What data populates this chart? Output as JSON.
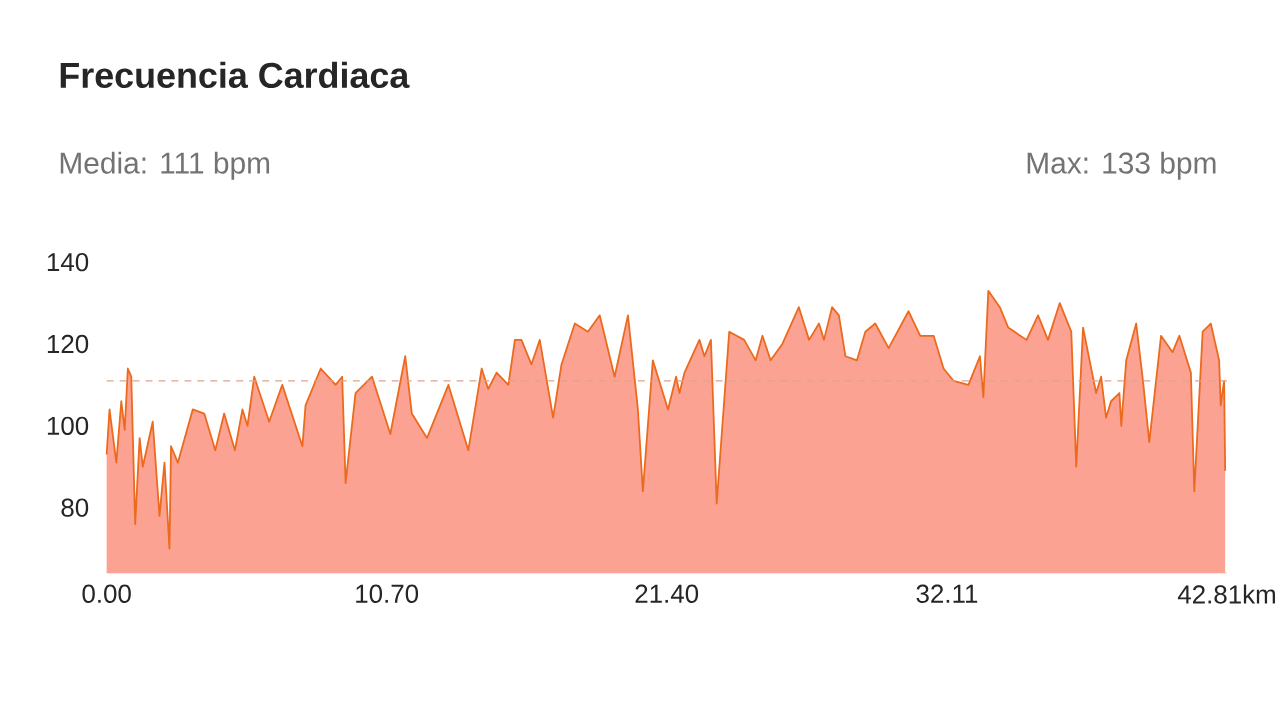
{
  "chart_data": {
    "type": "area",
    "title": "Frecuencia Cardiaca",
    "annotations": [
      "Media: 111 bpm",
      "Max: 133 bpm"
    ],
    "x": [
      0.0,
      0.11,
      0.37,
      0.56,
      0.69,
      0.81,
      0.94,
      1.09,
      1.26,
      1.38,
      1.76,
      2.02,
      2.21,
      2.4,
      2.46,
      2.72,
      3.29,
      3.73,
      4.15,
      4.49,
      4.9,
      5.19,
      5.38,
      5.64,
      6.21,
      6.71,
      7.48,
      7.6,
      8.18,
      8.75,
      9.0,
      9.13,
      9.51,
      10.14,
      10.84,
      11.41,
      11.66,
      12.24,
      13.06,
      13.82,
      14.33,
      14.58,
      14.9,
      15.35,
      15.6,
      15.85,
      16.23,
      16.55,
      17.06,
      17.38,
      17.89,
      18.39,
      18.84,
      19.41,
      19.92,
      20.3,
      20.49,
      20.87,
      21.45,
      21.76,
      21.89,
      22.08,
      22.65,
      22.84,
      23.09,
      23.31,
      23.79,
      24.36,
      24.8,
      25.06,
      25.37,
      25.82,
      26.45,
      26.84,
      27.22,
      27.41,
      27.72,
      27.98,
      28.23,
      28.67,
      28.99,
      29.37,
      29.88,
      30.64,
      31.09,
      31.6,
      31.98,
      32.36,
      32.93,
      33.37,
      33.5,
      33.69,
      34.13,
      34.45,
      35.15,
      35.59,
      35.97,
      36.42,
      36.86,
      37.05,
      37.31,
      37.81,
      38.0,
      38.19,
      38.38,
      38.7,
      38.77,
      38.96,
      39.34,
      39.6,
      39.84,
      40.29,
      40.73,
      40.99,
      41.43,
      41.56,
      41.88,
      42.19,
      42.51,
      42.57,
      42.7,
      42.74
    ],
    "series": [
      {
        "color": "#ec6a1e",
        "values": [
          93,
          104,
          91,
          106,
          99,
          114,
          112,
          76,
          97,
          90,
          101,
          78,
          91,
          70,
          95,
          91,
          104,
          103,
          94,
          103,
          94,
          104,
          100,
          112,
          101,
          110,
          95,
          105,
          114,
          110,
          112,
          86,
          108,
          112,
          98,
          117,
          103,
          97,
          110,
          94,
          114,
          109,
          113,
          110,
          121,
          121,
          115,
          121,
          102,
          115,
          125,
          123,
          127,
          112,
          127,
          104,
          84,
          116,
          104,
          112,
          108,
          113,
          121,
          117,
          121,
          81,
          123,
          121,
          116,
          122,
          116,
          120,
          129,
          121,
          125,
          121,
          129,
          127,
          117,
          116,
          123,
          125,
          119,
          128,
          122,
          122,
          114,
          111,
          110,
          117,
          107,
          133,
          129,
          124,
          121,
          127,
          121,
          130,
          123,
          90,
          124,
          108,
          112,
          102,
          106,
          108,
          100,
          116,
          125,
          111,
          96,
          122,
          118,
          122,
          113,
          84,
          123,
          125,
          116,
          105,
          111,
          89
        ]
      }
    ],
    "xlim": [
      0,
      42.81
    ],
    "ylim": [
      64,
      140
    ],
    "xticks": [
      {
        "value": 0,
        "label": "0.00"
      },
      {
        "value": 10.7,
        "label": "10.70"
      },
      {
        "value": 21.4,
        "label": "21.40"
      },
      32.11,
      {
        "value": 42.81,
        "label": "42.81km"
      }
    ],
    "yticks": [
      80,
      100,
      120,
      140
    ],
    "ref_lines": [
      {
        "axis": "y",
        "value": 111,
        "color": "#e0a48c",
        "line_style": "dashed"
      }
    ]
  }
}
